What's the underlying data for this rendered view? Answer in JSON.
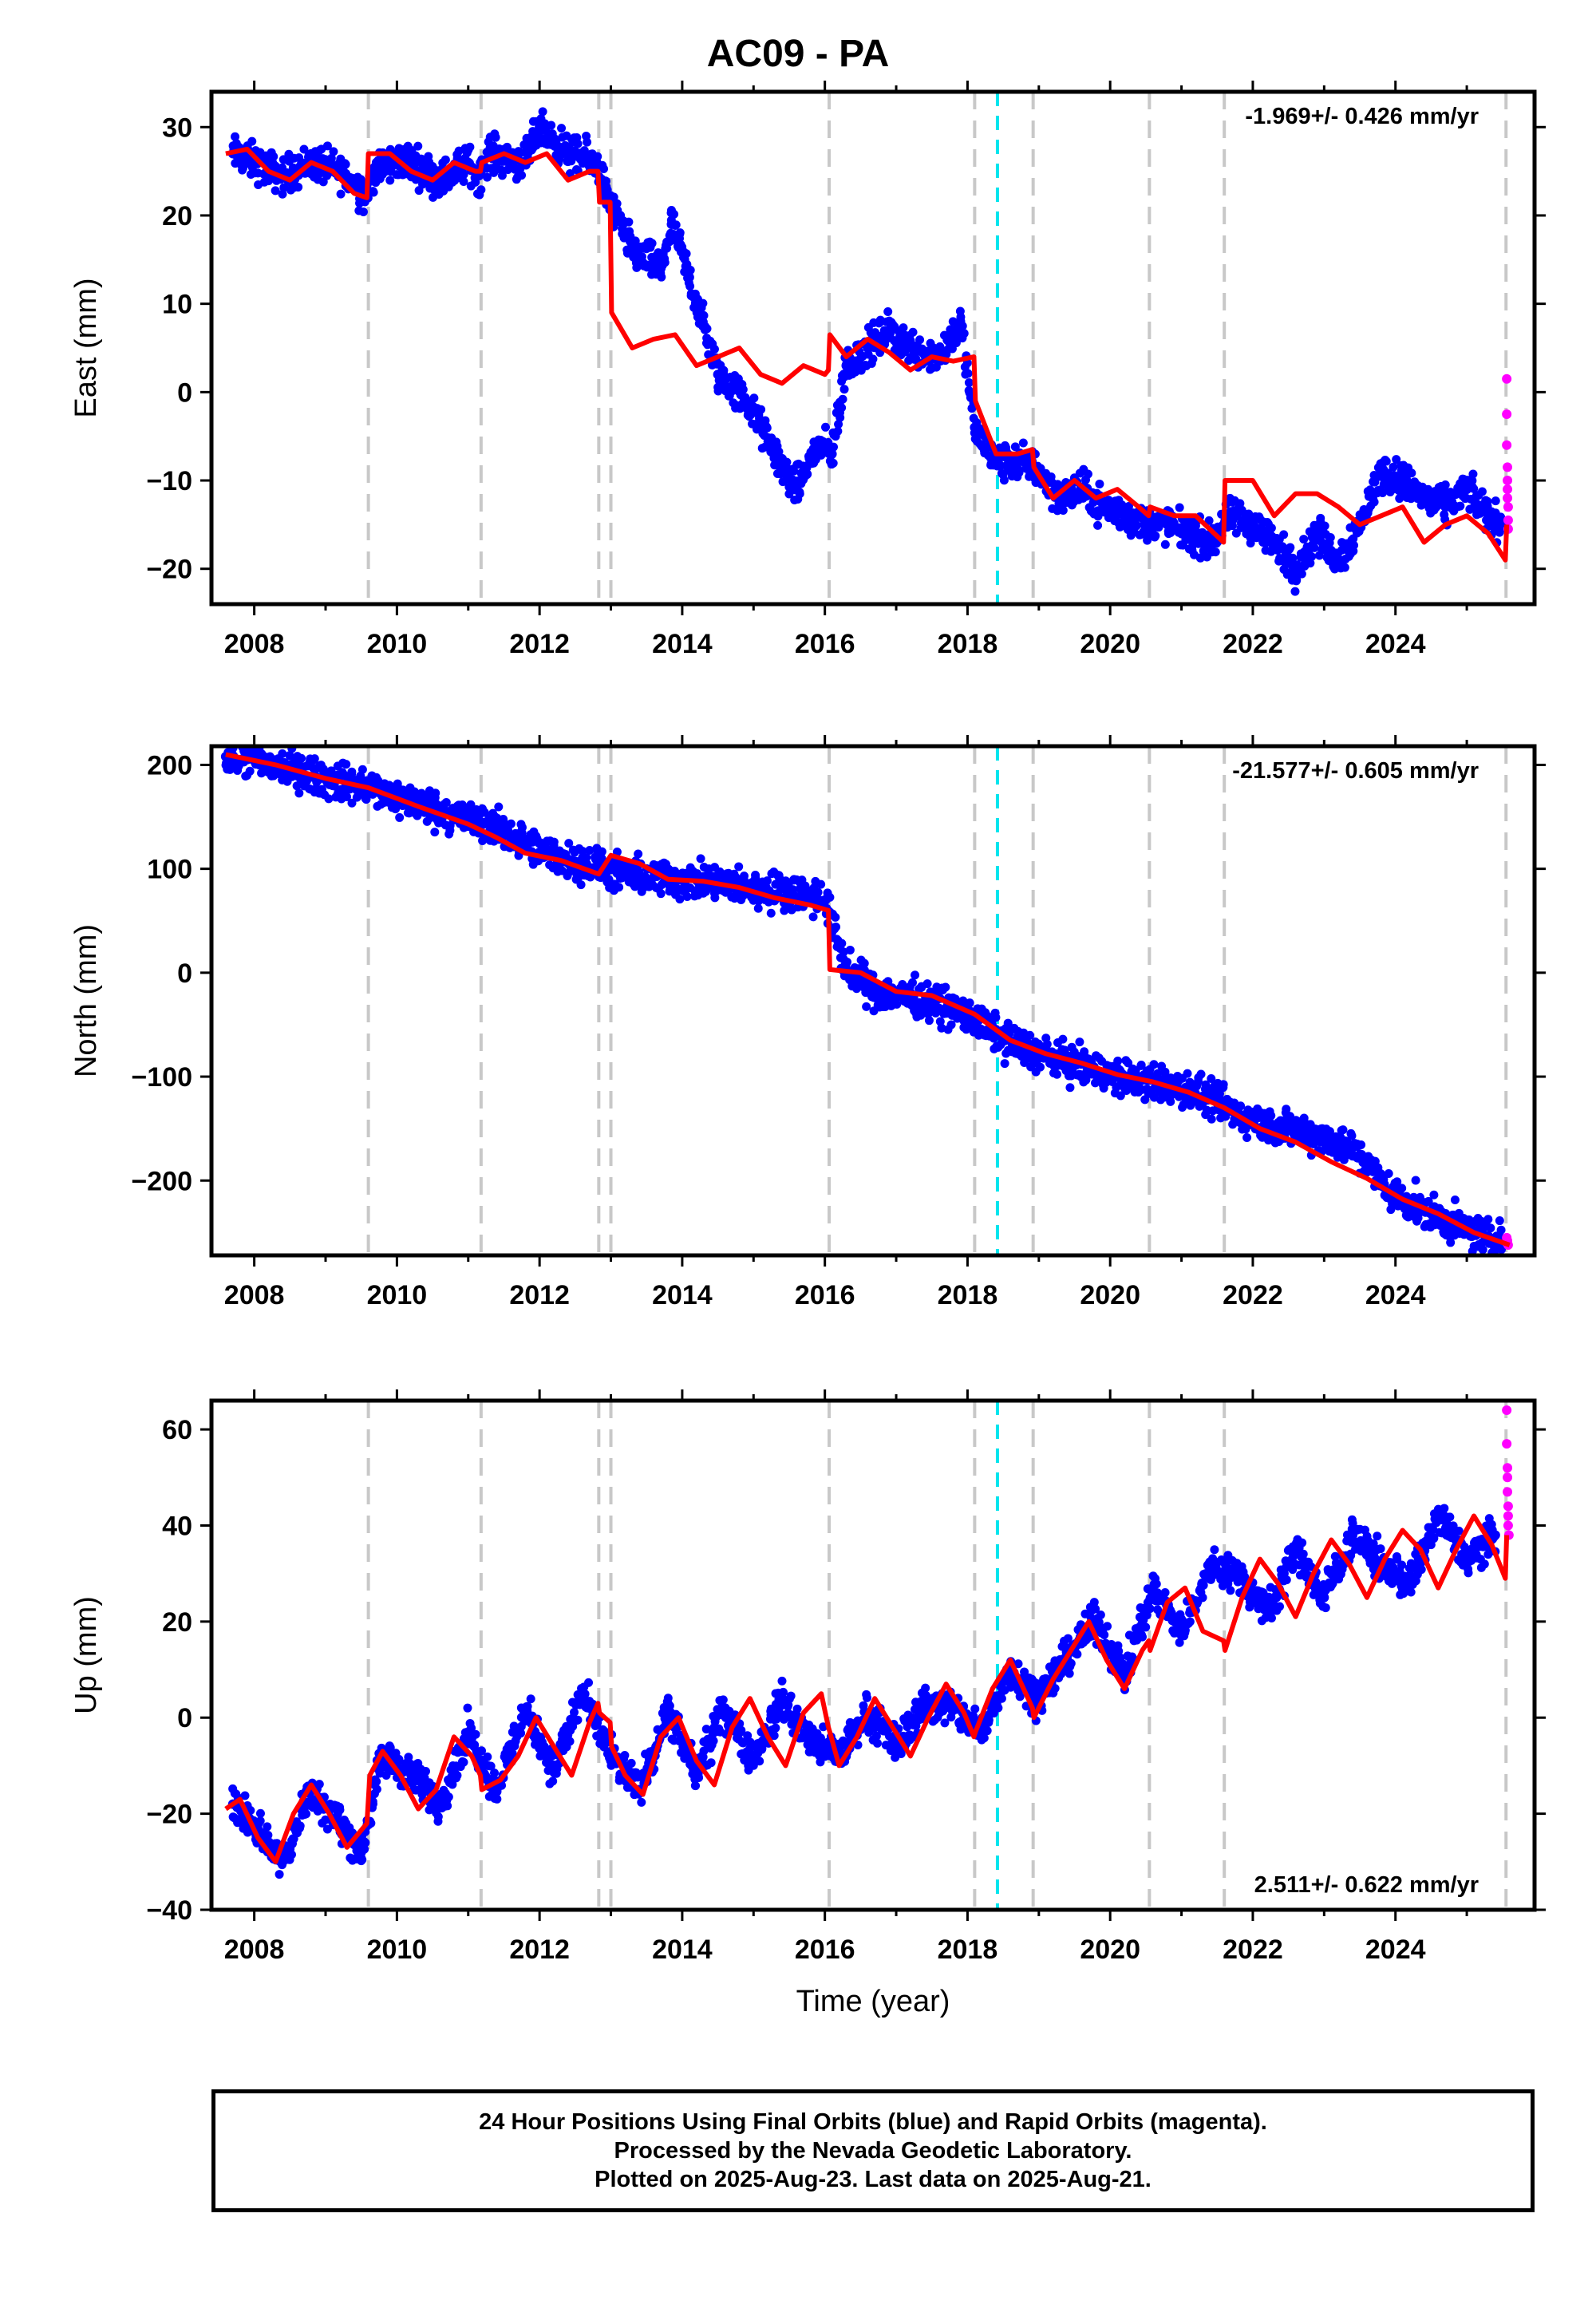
{
  "title": "AC09 - PA",
  "footer": {
    "line1": "24 Hour Positions Using Final Orbits (blue) and Rapid Orbits (magenta).",
    "line2": "Processed by the Nevada Geodetic Laboratory.",
    "line3": "Plotted on 2025-Aug-23. Last data on 2025-Aug-21."
  },
  "colors": {
    "final_orbits": "#0000ff",
    "rapid_orbits": "#ff00ff",
    "model": "#ff0000",
    "event_lines": "#c8c8c8",
    "highlight_line": "#00e5ee"
  },
  "chart_data": [
    {
      "type": "scatter",
      "panel": "east",
      "title": "",
      "xlabel": "",
      "ylabel": "East (mm)",
      "xlim": [
        2007.4,
        2025.95
      ],
      "ylim": [
        -24,
        34
      ],
      "xticks": [
        2008,
        2010,
        2012,
        2014,
        2016,
        2018,
        2020,
        2022,
        2024
      ],
      "yticks": [
        -20,
        -10,
        0,
        10,
        20,
        30
      ],
      "rate_text": "-1.969+/- 0.426 mm/yr",
      "rate_position": "top-right",
      "event_lines": [
        2009.6,
        2011.18,
        2012.83,
        2013.0,
        2016.06,
        2018.1,
        2018.92,
        2020.55,
        2021.6,
        2025.55
      ],
      "highlight_line": 2018.42,
      "series": [
        {
          "marker": "points",
          "x": [
            2007.7,
            2008.0,
            2008.4,
            2008.8,
            2009.2,
            2009.55,
            2009.7,
            2010.1,
            2010.6,
            2011.0,
            2011.15,
            2011.3,
            2011.8,
            2012.0,
            2012.4,
            2012.8,
            2012.95,
            2013.3,
            2013.7,
            2013.85,
            2014.1,
            2014.5,
            2014.9,
            2015.3,
            2015.6,
            2015.9,
            2016.1,
            2016.3,
            2016.6,
            2016.9,
            2017.2,
            2017.6,
            2017.9,
            2018.1,
            2018.4,
            2018.9,
            2019.3,
            2019.6,
            2019.9,
            2020.2,
            2020.5,
            2020.8,
            2021.1,
            2021.4,
            2021.7,
            2022.0,
            2022.3,
            2022.6,
            2022.9,
            2023.2,
            2023.5,
            2023.8,
            2024.1,
            2024.4,
            2024.7,
            2025.0,
            2025.3,
            2025.5
          ],
          "y": [
            27,
            26,
            24.5,
            26,
            25,
            22.5,
            25,
            26.5,
            24,
            26,
            24.5,
            27,
            26,
            30,
            27,
            26,
            22,
            16,
            14,
            19,
            13,
            2,
            -1,
            -7,
            -11,
            -6,
            -7,
            3,
            5,
            7,
            5,
            4,
            8,
            -4,
            -8,
            -8,
            -12,
            -11,
            -13,
            -14,
            -15,
            -15,
            -16,
            -17,
            -14,
            -15,
            -17,
            -20,
            -16,
            -19,
            -15,
            -9,
            -10,
            -12,
            -13,
            -11,
            -14,
            -15
          ]
        },
        {
          "marker": "points",
          "rapid": true,
          "x": [
            2025.56,
            2025.56,
            2025.56,
            2025.57,
            2025.57,
            2025.57,
            2025.57,
            2025.58,
            2025.58,
            2025.58
          ],
          "y": [
            1.5,
            -2.5,
            -6,
            -8.5,
            -10,
            -11,
            -12,
            -13,
            -14.5,
            -15.5
          ]
        },
        {
          "marker": "line",
          "x": [
            2007.6,
            2007.9,
            2008.2,
            2008.5,
            2008.8,
            2009.1,
            2009.4,
            2009.58,
            2009.6,
            2009.9,
            2010.2,
            2010.5,
            2010.8,
            2011.1,
            2011.17,
            2011.19,
            2011.5,
            2011.8,
            2012.1,
            2012.4,
            2012.7,
            2012.82,
            2012.84,
            2012.99,
            2013.01,
            2013.3,
            2013.6,
            2013.9,
            2014.2,
            2014.5,
            2014.8,
            2015.1,
            2015.4,
            2015.7,
            2016.0,
            2016.05,
            2016.07,
            2016.3,
            2016.6,
            2016.9,
            2017.2,
            2017.5,
            2017.8,
            2018.09,
            2018.11,
            2018.4,
            2018.7,
            2018.91,
            2018.93,
            2019.2,
            2019.5,
            2019.8,
            2020.1,
            2020.4,
            2020.54,
            2020.56,
            2020.9,
            2021.2,
            2021.59,
            2021.61,
            2022.0,
            2022.3,
            2022.6,
            2022.9,
            2023.2,
            2023.5,
            2023.8,
            2024.1,
            2024.4,
            2024.7,
            2025.0,
            2025.3,
            2025.54,
            2025.56
          ],
          "y": [
            27,
            27.5,
            25,
            24,
            26,
            25,
            22.5,
            22,
            27,
            27,
            25,
            24,
            26,
            25,
            25,
            26,
            27,
            26,
            27,
            24,
            25,
            25,
            21.5,
            21.5,
            9,
            5,
            6,
            6.5,
            3,
            4,
            5,
            2,
            1,
            3,
            2,
            2.5,
            6.5,
            4,
            6,
            4.5,
            2.5,
            4,
            3.5,
            4,
            -1,
            -7,
            -7,
            -6.5,
            -8.5,
            -12,
            -10,
            -12,
            -11,
            -13,
            -14,
            -13,
            -14,
            -14,
            -17,
            -10,
            -10,
            -14,
            -11.5,
            -11.5,
            -13,
            -15,
            -14,
            -13,
            -17,
            -15,
            -14,
            -16,
            -19,
            -15
          ]
        }
      ]
    },
    {
      "type": "scatter",
      "panel": "north",
      "title": "",
      "xlabel": "",
      "ylabel": "North (mm)",
      "xlim": [
        2007.4,
        2025.95
      ],
      "ylim": [
        -272,
        218
      ],
      "xticks": [
        2008,
        2010,
        2012,
        2014,
        2016,
        2018,
        2020,
        2022,
        2024
      ],
      "yticks": [
        -200,
        -100,
        0,
        100,
        200
      ],
      "rate_text": "-21.577+/- 0.605 mm/yr",
      "rate_position": "top-right",
      "event_lines": [
        2009.6,
        2011.18,
        2012.83,
        2013.0,
        2016.06,
        2018.1,
        2018.92,
        2020.55,
        2021.6,
        2025.55
      ],
      "highlight_line": 2018.42,
      "series": [
        {
          "marker": "points",
          "x": [
            2007.6,
            2008.0,
            2008.5,
            2009.0,
            2009.5,
            2010.0,
            2010.5,
            2011.0,
            2011.5,
            2012.0,
            2012.5,
            2012.9,
            2013.2,
            2013.6,
            2014.0,
            2014.5,
            2015.0,
            2015.5,
            2016.0,
            2016.3,
            2016.7,
            2017.1,
            2017.5,
            2017.9,
            2018.3,
            2018.7,
            2019.1,
            2019.5,
            2019.9,
            2020.3,
            2020.7,
            2021.1,
            2021.5,
            2021.9,
            2022.3,
            2022.7,
            2023.1,
            2023.5,
            2023.9,
            2024.3,
            2024.7,
            2025.1,
            2025.5
          ],
          "y": [
            208,
            204,
            196,
            186,
            180,
            168,
            158,
            148,
            137,
            116,
            107,
            100,
            93,
            92,
            89,
            86,
            80,
            79,
            70,
            3,
            -18,
            -22,
            -28,
            -38,
            -55,
            -70,
            -80,
            -88,
            -96,
            -104,
            -107,
            -114,
            -125,
            -140,
            -148,
            -152,
            -160,
            -175,
            -210,
            -225,
            -240,
            -250,
            -256
          ]
        },
        {
          "marker": "points",
          "rapid": true,
          "x": [
            2025.56,
            2025.57,
            2025.58
          ],
          "y": [
            -255,
            -258,
            -262
          ]
        },
        {
          "marker": "line",
          "x": [
            2007.6,
            2008.3,
            2009.0,
            2009.6,
            2010.3,
            2011.0,
            2011.4,
            2011.8,
            2012.3,
            2012.83,
            2013.0,
            2013.4,
            2013.8,
            2014.3,
            2014.8,
            2015.3,
            2015.8,
            2016.05,
            2016.07,
            2016.5,
            2017.0,
            2017.5,
            2018.1,
            2018.6,
            2019.1,
            2019.6,
            2020.1,
            2020.6,
            2021.1,
            2021.6,
            2022.1,
            2022.6,
            2023.1,
            2023.6,
            2024.1,
            2024.6,
            2025.1,
            2025.6
          ],
          "y": [
            210,
            200,
            187,
            178,
            160,
            143,
            130,
            115,
            108,
            95,
            113,
            105,
            90,
            88,
            82,
            72,
            65,
            60,
            3,
            0,
            -18,
            -22,
            -40,
            -65,
            -78,
            -87,
            -98,
            -105,
            -115,
            -130,
            -150,
            -163,
            -182,
            -198,
            -218,
            -232,
            -250,
            -262
          ]
        }
      ]
    },
    {
      "type": "scatter",
      "panel": "up",
      "title": "",
      "xlabel": "Time (year)",
      "ylabel": "Up (mm)",
      "xlim": [
        2007.4,
        2025.95
      ],
      "ylim": [
        -40,
        66
      ],
      "xticks": [
        2008,
        2010,
        2012,
        2014,
        2016,
        2018,
        2020,
        2022,
        2024
      ],
      "yticks": [
        -40,
        -20,
        0,
        20,
        40,
        60
      ],
      "rate_text": "2.511+/- 0.622 mm/yr",
      "rate_position": "bottom-right",
      "event_lines": [
        2009.6,
        2011.18,
        2012.83,
        2013.0,
        2016.06,
        2018.1,
        2018.92,
        2020.55,
        2021.6,
        2025.55
      ],
      "highlight_line": 2018.42,
      "series": [
        {
          "marker": "points",
          "x": [
            2007.7,
            2008.0,
            2008.4,
            2008.8,
            2009.2,
            2009.5,
            2009.8,
            2010.2,
            2010.6,
            2011.0,
            2011.4,
            2011.8,
            2012.2,
            2012.6,
            2013.0,
            2013.4,
            2013.8,
            2014.2,
            2014.6,
            2015.0,
            2015.4,
            2015.8,
            2016.2,
            2016.6,
            2017.0,
            2017.4,
            2017.8,
            2018.2,
            2018.6,
            2019.0,
            2019.4,
            2019.8,
            2020.2,
            2020.6,
            2021.0,
            2021.4,
            2021.8,
            2022.2,
            2022.6,
            2023.0,
            2023.4,
            2023.8,
            2024.2,
            2024.6,
            2025.0,
            2025.4
          ],
          "y": [
            -18,
            -22,
            -30,
            -15,
            -22,
            -28,
            -8,
            -12,
            -18,
            -3,
            -15,
            2,
            -11,
            5,
            -8,
            -15,
            1,
            -12,
            2,
            -9,
            4,
            -5,
            -8,
            1,
            -6,
            3,
            2,
            -3,
            10,
            4,
            13,
            20,
            9,
            27,
            18,
            31,
            30,
            22,
            35,
            25,
            38,
            32,
            28,
            42,
            33,
            38
          ]
        },
        {
          "marker": "points",
          "rapid": true,
          "x": [
            2025.56,
            2025.56,
            2025.57,
            2025.57,
            2025.57,
            2025.58,
            2025.58,
            2025.58,
            2025.59
          ],
          "y": [
            64,
            57,
            52,
            50,
            47,
            44,
            42,
            40,
            38
          ]
        },
        {
          "marker": "line",
          "x": [
            2007.6,
            2007.8,
            2008.05,
            2008.3,
            2008.55,
            2008.8,
            2009.05,
            2009.3,
            2009.58,
            2009.62,
            2009.8,
            2010.05,
            2010.3,
            2010.55,
            2010.8,
            2011.05,
            2011.17,
            2011.19,
            2011.45,
            2011.7,
            2011.95,
            2012.2,
            2012.45,
            2012.7,
            2012.82,
            2012.84,
            2012.99,
            2013.01,
            2013.2,
            2013.45,
            2013.7,
            2013.95,
            2014.2,
            2014.45,
            2014.7,
            2014.95,
            2015.2,
            2015.45,
            2015.7,
            2015.95,
            2016.05,
            2016.07,
            2016.2,
            2016.45,
            2016.7,
            2016.95,
            2017.2,
            2017.45,
            2017.7,
            2017.95,
            2018.09,
            2018.11,
            2018.35,
            2018.6,
            2018.91,
            2018.93,
            2019.2,
            2019.45,
            2019.7,
            2019.95,
            2020.2,
            2020.45,
            2020.54,
            2020.56,
            2020.8,
            2021.05,
            2021.3,
            2021.59,
            2021.61,
            2021.85,
            2022.1,
            2022.35,
            2022.6,
            2022.85,
            2023.1,
            2023.35,
            2023.6,
            2023.85,
            2024.1,
            2024.35,
            2024.6,
            2024.85,
            2025.1,
            2025.35,
            2025.54,
            2025.56
          ],
          "y": [
            -19,
            -17,
            -25,
            -30,
            -20,
            -14,
            -20,
            -27,
            -22,
            -12,
            -7,
            -12,
            -19,
            -15,
            -4,
            -8,
            -12,
            -15,
            -13,
            -8,
            0,
            -6,
            -12,
            -1,
            3,
            1,
            -1,
            -6,
            -12,
            -16,
            -4,
            0,
            -9,
            -14,
            -2,
            4,
            -4,
            -10,
            1,
            5,
            -2,
            -3,
            -10,
            -4,
            4,
            -2,
            -8,
            0,
            7,
            1,
            -4,
            -3,
            6,
            12,
            2,
            0,
            8,
            14,
            20,
            12,
            6,
            14,
            16,
            14,
            24,
            27,
            18,
            16,
            14,
            25,
            33,
            28,
            21,
            30,
            37,
            32,
            25,
            33,
            39,
            35,
            27,
            35,
            42,
            36,
            29,
            38
          ]
        }
      ]
    }
  ]
}
